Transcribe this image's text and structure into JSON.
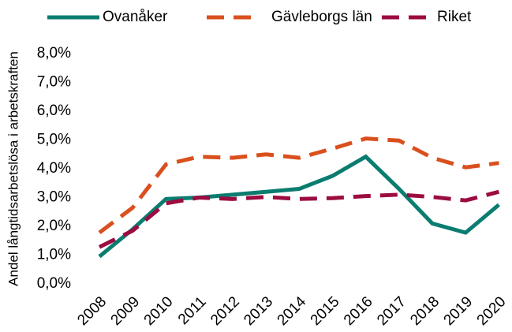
{
  "chart_data": {
    "type": "line",
    "y_label": "Andel långtidsarbetslösa i arbetskraften",
    "categories": [
      "2008",
      "2009",
      "2010",
      "2011",
      "2012",
      "2013",
      "2014",
      "2015",
      "2016",
      "2017",
      "2018",
      "2019",
      "2020"
    ],
    "series": [
      {
        "name": "Ovanåker",
        "color": "#0a7d70",
        "style": "solid",
        "values": [
          0.95,
          1.9,
          2.95,
          3.0,
          3.1,
          3.2,
          3.3,
          3.75,
          4.42,
          3.3,
          2.1,
          1.78,
          2.75
        ]
      },
      {
        "name": "Gävleborgs län",
        "color": "#d9501e",
        "style": "dashed",
        "values": [
          1.78,
          2.65,
          4.15,
          4.42,
          4.38,
          4.5,
          4.38,
          4.7,
          5.05,
          4.98,
          4.38,
          4.05,
          4.2
        ]
      },
      {
        "name": "Riket",
        "color": "#9c0c40",
        "style": "dashed",
        "values": [
          1.28,
          1.85,
          2.8,
          3.0,
          2.95,
          3.02,
          2.95,
          2.98,
          3.05,
          3.1,
          3.02,
          2.9,
          3.2
        ]
      }
    ],
    "ylim": [
      0,
      8
    ],
    "yticks": [
      {
        "value": 0,
        "label": "0,0%"
      },
      {
        "value": 1,
        "label": "1,0%"
      },
      {
        "value": 2,
        "label": "2,0%"
      },
      {
        "value": 3,
        "label": "3,0%"
      },
      {
        "value": 4,
        "label": "4,0%"
      },
      {
        "value": 5,
        "label": "5,0%"
      },
      {
        "value": 6,
        "label": "6,0%"
      },
      {
        "value": 7,
        "label": "7,0%"
      },
      {
        "value": 8,
        "label": "8,0%"
      }
    ],
    "grid": false,
    "legend": "top"
  }
}
